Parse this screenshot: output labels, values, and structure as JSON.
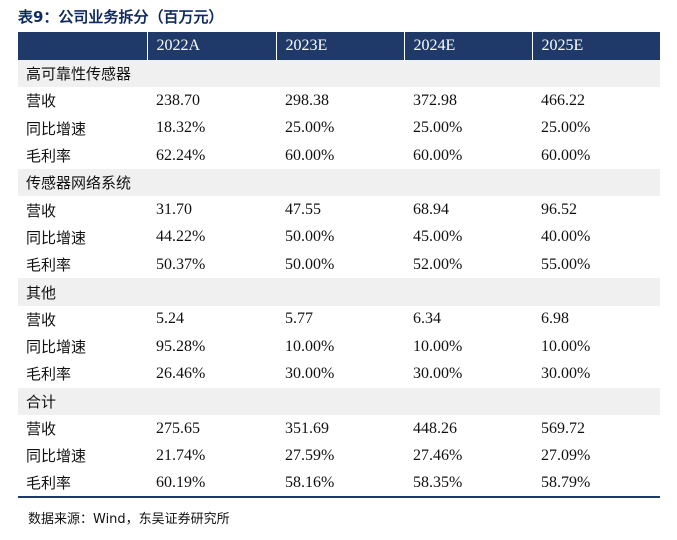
{
  "title": "表9：公司业务拆分（百万元）",
  "header": [
    "",
    "2022A",
    "2023E",
    "2024E",
    "2025E"
  ],
  "sections": [
    {
      "name": "高可靠性传感器",
      "rows": [
        {
          "label": "营收",
          "values": [
            "238.70",
            "298.38",
            "372.98",
            "466.22"
          ]
        },
        {
          "label": "同比增速",
          "values": [
            "18.32%",
            "25.00%",
            "25.00%",
            "25.00%"
          ]
        },
        {
          "label": "毛利率",
          "values": [
            "62.24%",
            "60.00%",
            "60.00%",
            "60.00%"
          ]
        }
      ]
    },
    {
      "name": "传感器网络系统",
      "rows": [
        {
          "label": "营收",
          "values": [
            "31.70",
            "47.55",
            "68.94",
            "96.52"
          ]
        },
        {
          "label": "同比增速",
          "values": [
            "44.22%",
            "50.00%",
            "45.00%",
            "40.00%"
          ]
        },
        {
          "label": "毛利率",
          "values": [
            "50.37%",
            "50.00%",
            "52.00%",
            "55.00%"
          ]
        }
      ]
    },
    {
      "name": "其他",
      "rows": [
        {
          "label": "营收",
          "values": [
            "5.24",
            "5.77",
            "6.34",
            "6.98"
          ]
        },
        {
          "label": "同比增速",
          "values": [
            "95.28%",
            "10.00%",
            "10.00%",
            "10.00%"
          ]
        },
        {
          "label": "毛利率",
          "values": [
            "26.46%",
            "30.00%",
            "30.00%",
            "30.00%"
          ]
        }
      ]
    },
    {
      "name": "合计",
      "rows": [
        {
          "label": "营收",
          "values": [
            "275.65",
            "351.69",
            "448.26",
            "569.72"
          ]
        },
        {
          "label": "同比增速",
          "values": [
            "21.74%",
            "27.59%",
            "27.46%",
            "27.09%"
          ]
        },
        {
          "label": "毛利率",
          "values": [
            "60.19%",
            "58.16%",
            "58.35%",
            "58.79%"
          ]
        }
      ]
    }
  ],
  "source": "数据来源：Wind，东吴证券研究所",
  "colors": {
    "header_bg": "#1f3a68",
    "section_bg": "#f0f0f0",
    "title": "#0f2a5c"
  }
}
